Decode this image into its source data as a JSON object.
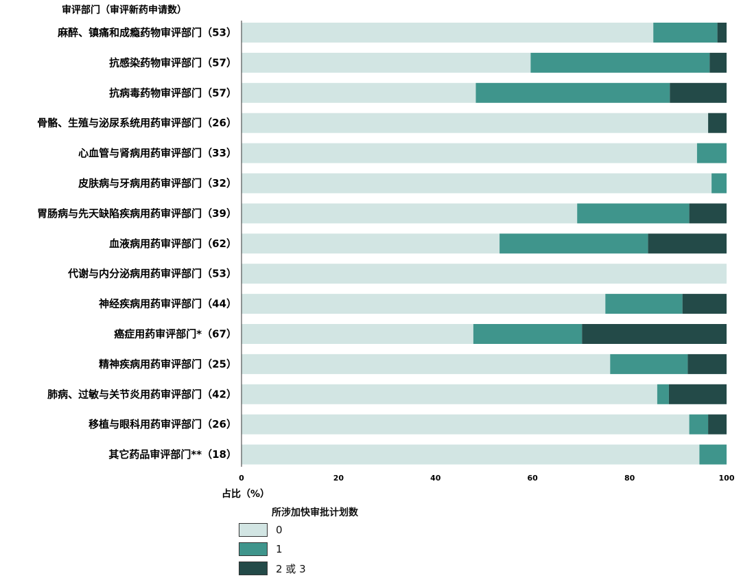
{
  "chart_data": {
    "type": "bar",
    "orientation": "horizontal",
    "stacked": true,
    "title": "审评部门（审评新药申请数）",
    "xlabel": "占比（%）",
    "xlim": [
      0,
      100
    ],
    "xticks": [
      "0",
      "20",
      "40",
      "60",
      "80",
      "100"
    ],
    "categories": [
      "麻醉、镇痛和成瘾药物审评部门（53）",
      "抗感染药物审评部门（57）",
      "抗病毒药物审评部门（57）",
      "骨骼、生殖与泌尿系统用药审评部门（26）",
      "心血管与肾病用药审评部门（33）",
      "皮肤病与牙病用药审评部门（32）",
      "胃肠病与先天缺陷疾病用药审评部门（39）",
      "血液病用药审评部门（62）",
      "代谢与内分泌病用药审评部门（53）",
      "神经疾病用药审评部门（44）",
      "癌症用药审评部门*（67）",
      "精神疾病用药审评部门（25）",
      "肺病、过敏与关节炎用药审评部门（42）",
      "移植与眼科用药审评部门（26）",
      "其它药品审评部门**（18）"
    ],
    "series": [
      {
        "name": "0",
        "color": "#d2e5e3",
        "values": [
          84.9,
          59.6,
          48.3,
          96.2,
          93.9,
          96.9,
          69.2,
          53.2,
          100,
          75.0,
          47.8,
          76.0,
          85.7,
          92.3,
          94.4
        ]
      },
      {
        "name": "1",
        "color": "#3f958c",
        "values": [
          13.2,
          36.9,
          40.0,
          0,
          6.1,
          3.1,
          23.1,
          30.6,
          0,
          15.9,
          22.4,
          16.0,
          2.4,
          3.9,
          5.6
        ]
      },
      {
        "name": "2 或 3",
        "color": "#234a48",
        "values": [
          1.9,
          3.5,
          11.7,
          3.8,
          0,
          0,
          7.7,
          16.2,
          0,
          9.1,
          29.8,
          8.0,
          11.9,
          3.8,
          0
        ]
      }
    ],
    "legend": {
      "title": "所涉加快审批计划数",
      "position": "bottom-left"
    },
    "grid": false
  }
}
